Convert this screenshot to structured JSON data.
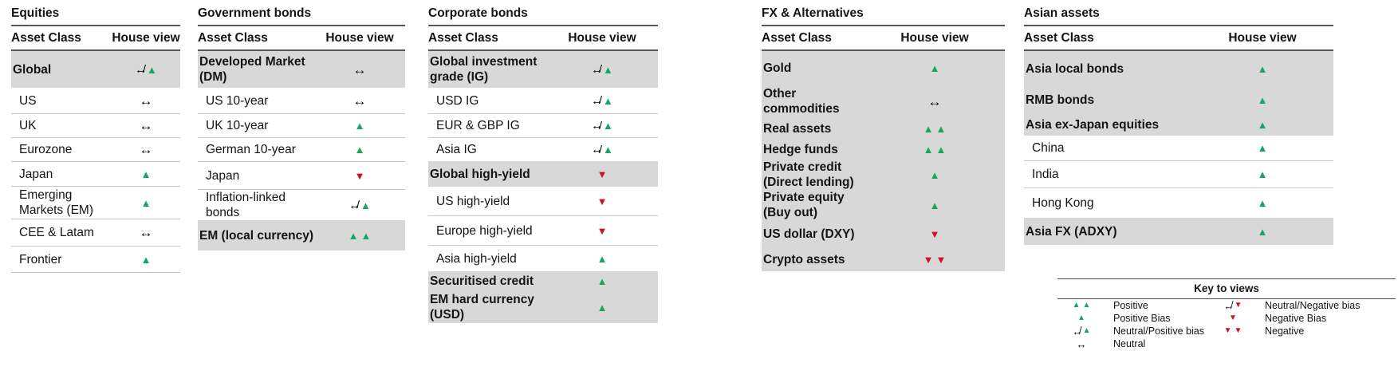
{
  "colors": {
    "green": "#17A562",
    "red": "#D0101E",
    "shaded": "#D8D8D8",
    "rule": "#59595B"
  },
  "table_headers": {
    "asset": "Asset Class",
    "view": "House view"
  },
  "sections": [
    {
      "title": "Equities",
      "rows": [
        {
          "label": "Global",
          "view": "neutral-positive",
          "category": true
        },
        {
          "label": "US",
          "view": "neutral"
        },
        {
          "label": "UK",
          "view": "neutral"
        },
        {
          "label": "Eurozone",
          "view": "neutral"
        },
        {
          "label": "Japan",
          "view": "positive-bias"
        },
        {
          "label": "Emerging Markets (EM)",
          "view": "positive-bias"
        },
        {
          "label": "CEE & Latam",
          "view": "neutral"
        },
        {
          "label": "Frontier",
          "view": "positive-bias"
        }
      ]
    },
    {
      "title": "Government bonds",
      "rows": [
        {
          "label": "Developed Market (DM)",
          "view": "neutral",
          "category": true
        },
        {
          "label": "US 10-year",
          "view": "neutral"
        },
        {
          "label": "UK 10-year",
          "view": "positive-bias"
        },
        {
          "label": "German 10-year",
          "view": "positive-bias"
        },
        {
          "label": "Japan",
          "view": "negative-bias"
        },
        {
          "label": "Inflation-linked bonds",
          "view": "neutral-positive"
        },
        {
          "label": "EM (local currency)",
          "view": "positive",
          "category": true
        }
      ]
    },
    {
      "title": "Corporate bonds",
      "rows": [
        {
          "label": "Global investment grade (IG)",
          "view": "neutral-positive",
          "category": true
        },
        {
          "label": "USD IG",
          "view": "neutral-positive"
        },
        {
          "label": "EUR & GBP IG",
          "view": "neutral-positive"
        },
        {
          "label": "Asia IG",
          "view": "neutral-positive"
        },
        {
          "label": "Global high-yield",
          "view": "negative-bias",
          "category": true
        },
        {
          "label": "US high-yield",
          "view": "negative-bias"
        },
        {
          "label": "Europe high-yield",
          "view": "negative-bias"
        },
        {
          "label": "Asia high-yield",
          "view": "positive-bias"
        },
        {
          "label": "Securitised credit",
          "view": "positive-bias",
          "category": true
        },
        {
          "label": "EM hard currency (USD)",
          "view": "positive-bias",
          "category": true
        }
      ]
    },
    {
      "title": "FX & Alternatives",
      "rows": [
        {
          "label": "Gold",
          "view": "positive-bias",
          "category": true
        },
        {
          "label": "Other commodities",
          "view": "neutral",
          "category": true
        },
        {
          "label": "Real assets",
          "view": "positive",
          "category": true
        },
        {
          "label": "Hedge funds",
          "view": "positive",
          "category": true
        },
        {
          "label": "Private credit (Direct lending)",
          "view": "positive-bias",
          "category": true
        },
        {
          "label": "Private equity (Buy out)",
          "view": "positive-bias",
          "category": true
        },
        {
          "label": "US dollar (DXY)",
          "view": "negative-bias",
          "category": true
        },
        {
          "label": "Crypto assets",
          "view": "negative",
          "category": true
        }
      ]
    },
    {
      "title": "Asian assets",
      "rows": [
        {
          "label": "Asia local bonds",
          "view": "positive-bias",
          "category": true
        },
        {
          "label": "RMB bonds",
          "view": "positive-bias",
          "category": true
        },
        {
          "label": "Asia ex-Japan equities",
          "view": "positive-bias",
          "category": true
        },
        {
          "label": "China",
          "view": "positive-bias"
        },
        {
          "label": "India",
          "view": "positive-bias"
        },
        {
          "label": "Hong Kong",
          "view": "positive-bias"
        },
        {
          "label": "Asia FX (ADXY)",
          "view": "positive-bias",
          "category": true
        }
      ]
    }
  ],
  "legend": {
    "title": "Key to views",
    "left": [
      {
        "view": "positive",
        "label": "Positive"
      },
      {
        "view": "positive-bias",
        "label": "Positive Bias"
      },
      {
        "view": "neutral-positive",
        "label": "Neutral/Positive bias"
      },
      {
        "view": "neutral",
        "label": "Neutral"
      }
    ],
    "right": [
      {
        "view": "neutral-negative",
        "label": "Neutral/Negative bias"
      },
      {
        "view": "negative-bias",
        "label": "Negative Bias"
      },
      {
        "view": "negative",
        "label": "Negative"
      }
    ]
  }
}
